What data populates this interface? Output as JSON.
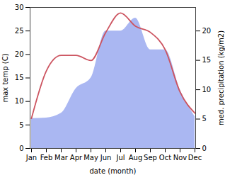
{
  "chart_data": {
    "type": "line",
    "x_label": "date (month)",
    "y_label": "max temp (C)",
    "y2_label": "med. precipitation (kg/m2)",
    "categories": [
      "Jan",
      "Feb",
      "Mar",
      "Apr",
      "May",
      "Jun",
      "Jul",
      "Aug",
      "Sep",
      "Oct",
      "Nov",
      "Dec"
    ],
    "series": [
      {
        "name": "med. precipitation",
        "type": "area",
        "axis": "y2",
        "color": "#aab7f2",
        "values": [
          5.1,
          5.2,
          6,
          10.2,
          12,
          20,
          20,
          22.2,
          16.8,
          16.8,
          10,
          5.4
        ]
      },
      {
        "name": "max temp",
        "type": "line",
        "color": "#cc5460",
        "values": [
          6.4,
          16.5,
          19.8,
          19.8,
          18.7,
          24.7,
          28.8,
          26,
          24.7,
          21,
          12,
          7.5
        ]
      }
    ],
    "ylim": [
      0,
      30
    ],
    "yticks": [
      0,
      5,
      10,
      15,
      20,
      25,
      30
    ],
    "y2lim": [
      0,
      24
    ],
    "y2ticks": [
      0,
      5,
      10,
      15,
      20
    ],
    "grid": false
  }
}
